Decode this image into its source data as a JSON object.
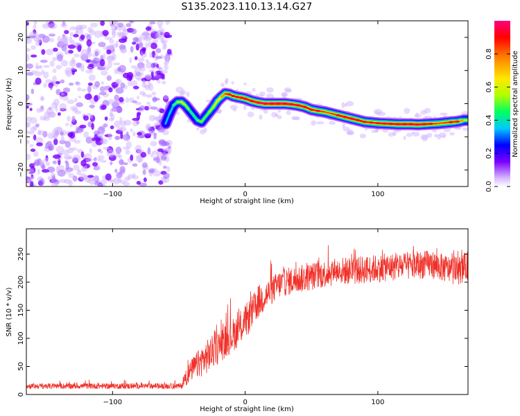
{
  "title": "S135.2023.110.13.14.G27",
  "colors": {
    "snr_line": "#f03028",
    "spectrogram_noise": "#8a3cf0",
    "frame": "#000000",
    "colormap": [
      "#ffffff",
      "#d8b8ff",
      "#7a00ff",
      "#0000ff",
      "#00c8ff",
      "#00ff60",
      "#b0ff00",
      "#ffe800",
      "#ff8000",
      "#ff0000",
      "#ff0080"
    ]
  },
  "chart_data": [
    {
      "type": "heatmap",
      "xlabel": "Height of straight line (km)",
      "ylabel": "Frequency (Hz)",
      "xlim": [
        -165,
        168
      ],
      "ylim": [
        -25,
        25
      ],
      "xticks": [
        -100,
        0,
        100
      ],
      "yticks": [
        -20,
        -10,
        0,
        10,
        20
      ],
      "noise_region_x": [
        -165,
        -60
      ],
      "ridge": {
        "x": [
          -60,
          -57,
          -54,
          -51,
          -48,
          -45,
          -42,
          -39,
          -36,
          -33,
          -30,
          -27,
          -24,
          -21,
          -18,
          -15,
          -12,
          -9,
          -6,
          -3,
          0,
          5,
          10,
          15,
          20,
          25,
          30,
          35,
          40,
          45,
          50,
          55,
          60,
          65,
          70,
          75,
          80,
          85,
          90,
          95,
          100,
          105,
          110,
          115,
          120,
          125,
          130,
          135,
          140,
          145,
          150,
          155,
          160,
          165,
          168
        ],
        "freq": [
          -6,
          -3,
          -0.5,
          0.5,
          0.5,
          -0.5,
          -2,
          -3.5,
          -5,
          -5.5,
          -4,
          -2.5,
          -1,
          0.8,
          2,
          3,
          2.8,
          2.3,
          2,
          1.8,
          1.5,
          0.8,
          0.3,
          0,
          0,
          0,
          0,
          -0.2,
          -0.5,
          -1,
          -1.8,
          -2.2,
          -2.5,
          -3,
          -3.5,
          -4,
          -4.5,
          -5,
          -5.5,
          -5.7,
          -5.9,
          -6,
          -6.1,
          -6.2,
          -6.2,
          -6.2,
          -6.3,
          -6.2,
          -6.1,
          -6,
          -5.8,
          -5.6,
          -5.4,
          -5.0,
          -5.0
        ],
        "amplitude": [
          0.35,
          0.3,
          0.4,
          0.5,
          0.6,
          0.55,
          0.45,
          0.4,
          0.45,
          0.5,
          0.45,
          0.5,
          0.55,
          0.6,
          0.65,
          0.75,
          0.8,
          0.8,
          0.8,
          0.85,
          0.85,
          0.85,
          0.9,
          0.9,
          0.95,
          0.95,
          0.95,
          0.9,
          0.85,
          0.85,
          0.8,
          0.8,
          0.75,
          0.75,
          0.8,
          0.85,
          0.85,
          0.85,
          0.8,
          0.8,
          0.8,
          0.85,
          0.85,
          0.85,
          0.9,
          0.9,
          0.9,
          0.85,
          0.8,
          0.75,
          0.75,
          0.8,
          0.8,
          0.6,
          0.5
        ]
      },
      "colorbar": {
        "label": "Normalized spectral amplitude",
        "range": [
          0,
          1
        ],
        "ticks": [
          "0.0",
          "0.2",
          "0.4",
          "0.6",
          "0.8"
        ]
      }
    },
    {
      "type": "line",
      "xlabel": "Height of straight line (km)",
      "ylabel": "SNR (10 * v/v)",
      "xlim": [
        -165,
        168
      ],
      "ylim": [
        0,
        295
      ],
      "xticks": [
        -100,
        0,
        100
      ],
      "yticks": [
        0,
        50,
        100,
        150,
        200,
        250
      ],
      "series": [
        {
          "x": [
            -165,
            -140,
            -120,
            -100,
            -80,
            -60,
            -48,
            -45,
            -40,
            -35,
            -30,
            -25,
            -20,
            -15,
            -10,
            -5,
            0,
            5,
            10,
            15,
            20,
            25,
            30,
            40,
            50,
            60,
            70,
            80,
            90,
            100,
            110,
            120,
            130,
            140,
            150,
            155,
            160,
            165,
            168
          ],
          "values": [
            15,
            15,
            15,
            15,
            15,
            15,
            15,
            30,
            45,
            55,
            65,
            75,
            85,
            95,
            105,
            115,
            130,
            145,
            165,
            175,
            185,
            195,
            200,
            205,
            210,
            215,
            220,
            220,
            222,
            225,
            227,
            228,
            230,
            232,
            225,
            222,
            220,
            225,
            230
          ],
          "noise": [
            5,
            5,
            5,
            5,
            5,
            5,
            5,
            15,
            20,
            25,
            30,
            30,
            30,
            30,
            30,
            30,
            30,
            30,
            30,
            28,
            25,
            25,
            25,
            25,
            25,
            25,
            25,
            25,
            25,
            25,
            25,
            25,
            25,
            25,
            25,
            25,
            25,
            25,
            25
          ]
        }
      ]
    }
  ]
}
